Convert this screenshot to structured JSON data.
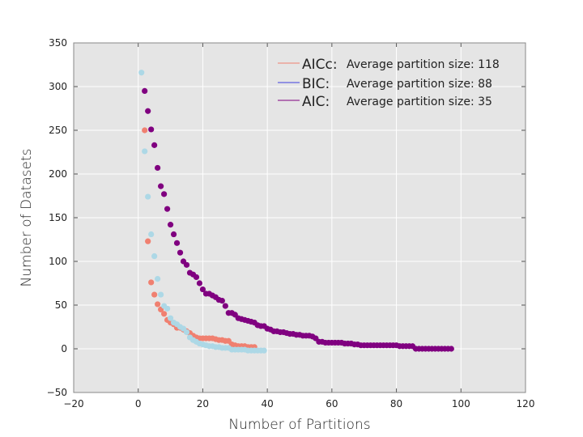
{
  "chart_data": {
    "type": "scatter",
    "xlabel": "Number of Partitions",
    "ylabel": "Number of Datasets",
    "xlim": [
      -20,
      120
    ],
    "ylim": [
      -50,
      350
    ],
    "xticks": [
      -20,
      0,
      20,
      40,
      60,
      80,
      100,
      120
    ],
    "yticks": [
      -50,
      0,
      50,
      100,
      150,
      200,
      250,
      300,
      350
    ],
    "grid": true,
    "background": "#e5e5e5",
    "legend_position": "top-right",
    "series": [
      {
        "name": "AICc:",
        "note": "Average partition size: 118",
        "color": "#f08070",
        "x": [
          2,
          3,
          4,
          5,
          6,
          7,
          8,
          9,
          10,
          11,
          12,
          13,
          14,
          15,
          16,
          17,
          18,
          19,
          20,
          21,
          22,
          23,
          24,
          25,
          26,
          27,
          28,
          29,
          30,
          31,
          32,
          33,
          34,
          35,
          36
        ],
        "y": [
          250,
          123,
          76,
          62,
          51,
          45,
          40,
          33,
          30,
          28,
          24,
          24,
          22,
          20,
          18,
          15,
          13,
          12,
          12,
          12,
          12,
          12,
          11,
          10,
          10,
          9,
          9,
          5,
          4,
          3,
          3,
          3,
          2,
          2,
          2
        ]
      },
      {
        "name": "BIC:",
        "note": "Average partition size: 88",
        "color": "#add8e6",
        "x": [
          1,
          2,
          3,
          4,
          5,
          6,
          7,
          8,
          9,
          10,
          11,
          12,
          13,
          14,
          15,
          16,
          17,
          18,
          19,
          20,
          21,
          22,
          23,
          24,
          25,
          26,
          27,
          28,
          29,
          30,
          31,
          32,
          33,
          34,
          35,
          36,
          37,
          38,
          39
        ],
        "y": [
          316,
          226,
          174,
          131,
          106,
          80,
          62,
          49,
          46,
          35,
          30,
          28,
          25,
          23,
          19,
          13,
          10,
          8,
          6,
          5,
          4,
          3,
          3,
          2,
          2,
          1,
          1,
          1,
          -1,
          -1,
          -1,
          -1,
          -1,
          -2,
          -2,
          -2,
          -2,
          -2,
          -2
        ]
      },
      {
        "name": "AIC:",
        "note": "Average partition size: 35",
        "color": "#800080",
        "x": [
          2,
          3,
          4,
          5,
          6,
          7,
          8,
          9,
          10,
          11,
          12,
          13,
          14,
          15,
          16,
          17,
          18,
          19,
          20,
          21,
          22,
          23,
          24,
          25,
          26,
          27,
          28,
          29,
          30,
          31,
          32,
          33,
          34,
          35,
          36,
          37,
          38,
          39,
          40,
          41,
          42,
          43,
          44,
          45,
          46,
          47,
          48,
          49,
          50,
          51,
          52,
          53,
          54,
          55,
          56,
          57,
          58,
          59,
          60,
          61,
          62,
          63,
          64,
          65,
          66,
          67,
          68,
          69,
          70,
          71,
          72,
          73,
          74,
          75,
          76,
          77,
          78,
          79,
          80,
          81,
          82,
          83,
          84,
          85,
          86,
          87,
          88,
          89,
          90,
          91,
          92,
          93,
          94,
          95,
          96,
          97
        ],
        "y": [
          295,
          272,
          251,
          233,
          207,
          186,
          177,
          160,
          142,
          131,
          121,
          110,
          100,
          96,
          87,
          85,
          82,
          75,
          68,
          63,
          63,
          61,
          59,
          56,
          55,
          49,
          41,
          41,
          39,
          35,
          34,
          33,
          32,
          31,
          30,
          27,
          26,
          26,
          23,
          22,
          20,
          20,
          19,
          19,
          18,
          17,
          17,
          16,
          16,
          15,
          15,
          15,
          14,
          12,
          8,
          8,
          7,
          7,
          7,
          7,
          7,
          7,
          6,
          6,
          6,
          5,
          5,
          4,
          4,
          4,
          4,
          4,
          4,
          4,
          4,
          4,
          4,
          4,
          4,
          3,
          3,
          3,
          3,
          3,
          0,
          0,
          0,
          0,
          0,
          0,
          0,
          0,
          0,
          0,
          0,
          0
        ]
      }
    ]
  }
}
